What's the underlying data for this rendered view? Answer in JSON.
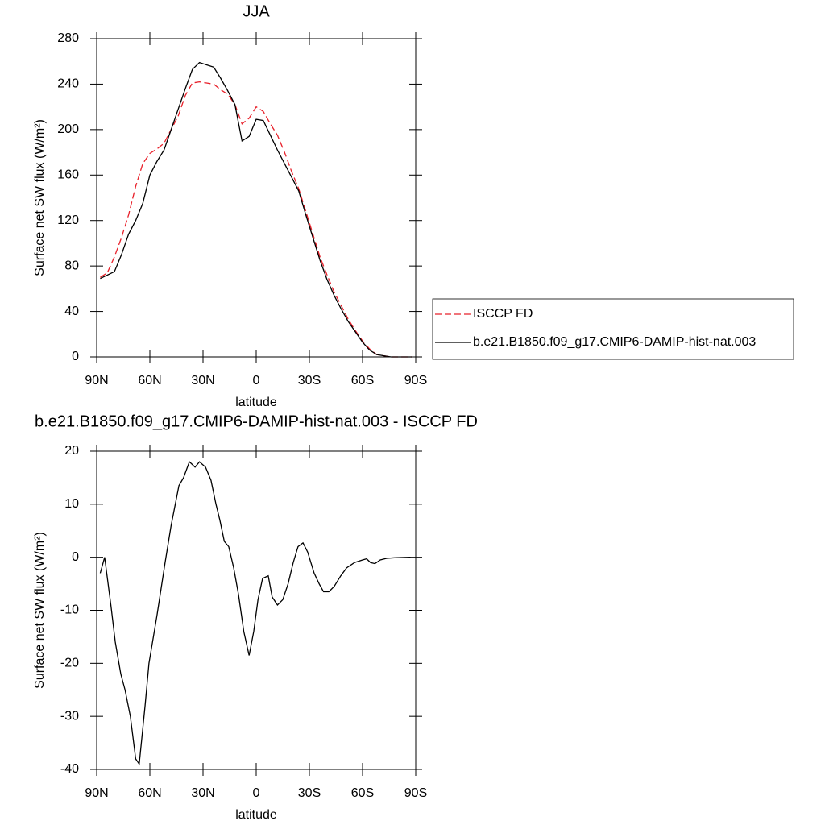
{
  "chart_data": [
    {
      "type": "line",
      "title": "JJA",
      "x_label": "latitude",
      "y_label": "Surface net SW flux (W/m²)",
      "xlim": [
        90,
        -90
      ],
      "xticks": [
        {
          "value": 90,
          "label": "90N"
        },
        {
          "value": 60,
          "label": "60N"
        },
        {
          "value": 30,
          "label": "30N"
        },
        0,
        {
          "value": -30,
          "label": "30S"
        },
        {
          "value": -60,
          "label": "60S"
        },
        {
          "value": -90,
          "label": "90S"
        }
      ],
      "ylim": [
        0,
        280
      ],
      "yticks": [
        0,
        40,
        80,
        120,
        160,
        200,
        240,
        280
      ],
      "legend": "right",
      "x": [
        88,
        84,
        80,
        76,
        72,
        68,
        64,
        60,
        56,
        52,
        48,
        44,
        40,
        36,
        32,
        28,
        24,
        20,
        16,
        12,
        8,
        4,
        0,
        -4,
        -8,
        -12,
        -16,
        -20,
        -24,
        -28,
        -32,
        -36,
        -40,
        -44,
        -48,
        -52,
        -56,
        -60,
        -64,
        -68,
        -72,
        -76,
        -80,
        -84,
        -88
      ],
      "series": [
        {
          "name": "ISCCP FD",
          "color": "#e8202a",
          "dash": true,
          "values": [
            70,
            74,
            88,
            105,
            125,
            150,
            170,
            179,
            183,
            188,
            200,
            212,
            230,
            241,
            242,
            241,
            240,
            235,
            231,
            222,
            205,
            210,
            220,
            216,
            205,
            195,
            180,
            163,
            148,
            128,
            108,
            88,
            72,
            57,
            45,
            33,
            23,
            14,
            7,
            2,
            1,
            0,
            0,
            0,
            0
          ]
        },
        {
          "name": "b.e21.B1850.f09_g17.CMIP6-DAMIP-hist-nat.003",
          "color": "#000000",
          "dash": false,
          "values": [
            69,
            72,
            75,
            90,
            108,
            120,
            135,
            160,
            172,
            182,
            200,
            218,
            236,
            253,
            259,
            257,
            255,
            245,
            234,
            222,
            190,
            194,
            209,
            208,
            195,
            182,
            170,
            158,
            146,
            125,
            105,
            85,
            68,
            54,
            42,
            31,
            22,
            13,
            6,
            2,
            1,
            0,
            0,
            0,
            0
          ]
        }
      ]
    },
    {
      "type": "line",
      "title": "b.e21.B1850.f09_g17.CMIP6-DAMIP-hist-nat.003 - ISCCP FD",
      "x_label": "latitude",
      "y_label": "Surface net SW flux (W/m²)",
      "xlim": [
        90,
        -90
      ],
      "xticks": [
        {
          "value": 90,
          "label": "90N"
        },
        {
          "value": 60,
          "label": "60N"
        },
        {
          "value": 30,
          "label": "30N"
        },
        0,
        {
          "value": -30,
          "label": "30S"
        },
        {
          "value": -60,
          "label": "60S"
        },
        {
          "value": -90,
          "label": "90S"
        }
      ],
      "ylim": [
        -40,
        20
      ],
      "yticks": [
        -40,
        -30,
        -20,
        -10,
        0,
        10,
        20
      ],
      "x": [
        88,
        85.5,
        82,
        79.5,
        76.4,
        74,
        71,
        68,
        66,
        62.7,
        60.5,
        56,
        51.4,
        48,
        43.6,
        41,
        37.7,
        34.5,
        32,
        28.6,
        25.5,
        22.7,
        20.5,
        18,
        15.5,
        12.7,
        10,
        7,
        4,
        1.4,
        -1,
        -3.6,
        -6.8,
        -9,
        -12,
        -15,
        -18,
        -20.9,
        -23.6,
        -26.4,
        -29,
        -32.7,
        -35.5,
        -38,
        -41,
        -44,
        -47.7,
        -51,
        -55.5,
        -60,
        -62.3,
        -64.5,
        -67,
        -70,
        -73.6,
        -78,
        -87
      ],
      "series": [
        {
          "color": "#000000",
          "dash": false,
          "values": [
            -3,
            0,
            -9,
            -16,
            -22,
            -25,
            -30,
            -38,
            -39,
            -28,
            -20,
            -11,
            -1,
            6,
            13.5,
            15,
            18,
            17,
            18,
            17,
            14.5,
            10,
            7,
            3,
            2,
            -2,
            -7,
            -14,
            -18.5,
            -14,
            -8,
            -4,
            -3.5,
            -7.5,
            -9,
            -8,
            -5,
            -1,
            2,
            2.7,
            1,
            -3,
            -5,
            -6.5,
            -6.5,
            -5.5,
            -3.5,
            -2,
            -1,
            -0.5,
            -0.3,
            -1,
            -1.2,
            -0.5,
            -0.2,
            -0.1,
            0
          ]
        }
      ]
    }
  ]
}
